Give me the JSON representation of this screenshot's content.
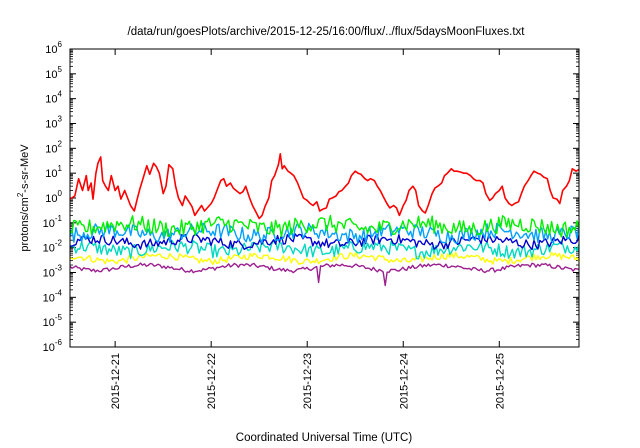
{
  "chart_data": {
    "type": "line",
    "title": "/data/run/goesPlots/archive/2015-12-25/16:00/flux/../flux/5daysMoonFluxes.txt",
    "xlabel": "Coordinated Universal Time (UTC)",
    "ylabel": {
      "prefix": "protons/cm",
      "sup": "2",
      "suffix": "-s-sr-MeV"
    },
    "yscale": "log",
    "ylim_exponents": [
      -6,
      6
    ],
    "ytick_base": "10",
    "ytick_exponents": [
      "6",
      "5",
      "4",
      "3",
      "2",
      "1",
      "0",
      "-1",
      "-2",
      "-3",
      "-4",
      "-5",
      "-6"
    ],
    "x_tick_labels": [
      "2015-12-21",
      "2015-12-22",
      "2015-12-23",
      "2015-12-24",
      "2015-12-25"
    ],
    "x_range_days": [
      0.53,
      5.83
    ],
    "series": [
      {
        "color": "#ff0000",
        "points": [
          [
            0.53,
            0.9
          ],
          [
            0.58,
            1.2
          ],
          [
            0.62,
            6
          ],
          [
            0.66,
            2
          ],
          [
            0.7,
            8
          ],
          [
            0.72,
            2
          ],
          [
            0.75,
            4
          ],
          [
            0.77,
            0.9
          ],
          [
            0.8,
            10
          ],
          [
            0.82,
            25
          ],
          [
            0.85,
            45
          ],
          [
            0.87,
            5
          ],
          [
            0.9,
            3
          ],
          [
            0.93,
            2
          ],
          [
            0.96,
            8
          ],
          [
            1.0,
            2
          ],
          [
            1.03,
            3
          ],
          [
            1.06,
            0.9
          ],
          [
            1.1,
            2
          ],
          [
            1.13,
            1
          ],
          [
            1.16,
            0.5
          ],
          [
            1.2,
            0.3
          ],
          [
            1.23,
            0.9
          ],
          [
            1.26,
            2.5
          ],
          [
            1.3,
            8
          ],
          [
            1.33,
            20
          ],
          [
            1.36,
            9
          ],
          [
            1.4,
            25
          ],
          [
            1.43,
            18
          ],
          [
            1.46,
            10
          ],
          [
            1.5,
            1.5
          ],
          [
            1.53,
            3
          ],
          [
            1.56,
            22
          ],
          [
            1.6,
            15
          ],
          [
            1.63,
            3
          ],
          [
            1.66,
            1
          ],
          [
            1.7,
            0.5
          ],
          [
            1.73,
            1.2
          ],
          [
            1.76,
            0.8
          ],
          [
            1.8,
            0.45
          ],
          [
            1.83,
            0.2
          ],
          [
            1.86,
            0.3
          ],
          [
            1.9,
            0.5
          ],
          [
            1.93,
            0.3
          ],
          [
            1.96,
            0.4
          ],
          [
            2.0,
            0.6
          ],
          [
            2.03,
            1
          ],
          [
            2.06,
            2
          ],
          [
            2.1,
            5
          ],
          [
            2.13,
            6
          ],
          [
            2.16,
            3
          ],
          [
            2.2,
            4
          ],
          [
            2.23,
            2.5
          ],
          [
            2.26,
            2
          ],
          [
            2.3,
            1.5
          ],
          [
            2.33,
            1.8
          ],
          [
            2.36,
            3
          ],
          [
            2.4,
            1
          ],
          [
            2.43,
            0.5
          ],
          [
            2.46,
            0.3
          ],
          [
            2.5,
            0.15
          ],
          [
            2.53,
            0.2
          ],
          [
            2.56,
            0.45
          ],
          [
            2.6,
            1
          ],
          [
            2.63,
            5
          ],
          [
            2.66,
            8
          ],
          [
            2.7,
            22
          ],
          [
            2.72,
            60
          ],
          [
            2.74,
            15
          ],
          [
            2.76,
            20
          ],
          [
            2.8,
            12
          ],
          [
            2.83,
            10
          ],
          [
            2.86,
            8
          ],
          [
            2.9,
            4
          ],
          [
            2.93,
            2
          ],
          [
            2.96,
            1
          ],
          [
            3.0,
            0.8
          ],
          [
            3.03,
            0.6
          ],
          [
            3.06,
            0.5
          ],
          [
            3.1,
            0.7
          ],
          [
            3.13,
            0.3
          ],
          [
            3.16,
            0.35
          ],
          [
            3.2,
            0.4
          ],
          [
            3.23,
            0.9
          ],
          [
            3.26,
            1
          ],
          [
            3.3,
            1.2
          ],
          [
            3.33,
            1.8
          ],
          [
            3.36,
            2
          ],
          [
            3.4,
            3
          ],
          [
            3.43,
            4
          ],
          [
            3.46,
            8
          ],
          [
            3.5,
            12
          ],
          [
            3.53,
            10
          ],
          [
            3.56,
            9
          ],
          [
            3.6,
            6
          ],
          [
            3.63,
            5
          ],
          [
            3.66,
            6
          ],
          [
            3.7,
            5
          ],
          [
            3.73,
            3
          ],
          [
            3.76,
            2
          ],
          [
            3.8,
            1
          ],
          [
            3.83,
            0.6
          ],
          [
            3.86,
            0.4
          ],
          [
            3.9,
            0.5
          ],
          [
            3.93,
            0.4
          ],
          [
            3.96,
            0.2
          ],
          [
            4.0,
            0.5
          ],
          [
            4.03,
            0.8
          ],
          [
            4.06,
            2
          ],
          [
            4.1,
            3
          ],
          [
            4.13,
            2
          ],
          [
            4.16,
            0.5
          ],
          [
            4.2,
            0.3
          ],
          [
            4.23,
            0.25
          ],
          [
            4.26,
            0.5
          ],
          [
            4.3,
            1.5
          ],
          [
            4.33,
            2.5
          ],
          [
            4.36,
            3
          ],
          [
            4.4,
            4
          ],
          [
            4.43,
            8
          ],
          [
            4.46,
            10
          ],
          [
            4.5,
            15
          ],
          [
            4.53,
            12
          ],
          [
            4.56,
            12
          ],
          [
            4.6,
            11
          ],
          [
            4.63,
            10
          ],
          [
            4.66,
            10
          ],
          [
            4.7,
            8
          ],
          [
            4.73,
            6
          ],
          [
            4.76,
            5
          ],
          [
            4.8,
            5
          ],
          [
            4.83,
            4
          ],
          [
            4.86,
            1.5
          ],
          [
            4.9,
            0.8
          ],
          [
            4.93,
            1
          ],
          [
            4.96,
            1.5
          ],
          [
            5.0,
            2
          ],
          [
            5.03,
            3
          ],
          [
            5.06,
            1
          ],
          [
            5.1,
            0.6
          ],
          [
            5.13,
            0.5
          ],
          [
            5.16,
            0.6
          ],
          [
            5.2,
            0.7
          ],
          [
            5.23,
            1.5
          ],
          [
            5.26,
            3
          ],
          [
            5.3,
            5
          ],
          [
            5.33,
            8
          ],
          [
            5.36,
            12
          ],
          [
            5.4,
            10
          ],
          [
            5.43,
            9
          ],
          [
            5.46,
            7
          ],
          [
            5.5,
            6
          ],
          [
            5.53,
            2
          ],
          [
            5.56,
            1
          ],
          [
            5.6,
            0.9
          ],
          [
            5.63,
            0.6
          ],
          [
            5.66,
            2
          ],
          [
            5.7,
            3
          ],
          [
            5.73,
            5
          ],
          [
            5.76,
            15
          ],
          [
            5.8,
            12
          ],
          [
            5.83,
            14
          ]
        ]
      },
      {
        "color": "#00ee00",
        "base": 0.075,
        "amp": 1.0,
        "dips": []
      },
      {
        "color": "#00a0ff",
        "base": 0.04,
        "amp": 0.9,
        "dips": []
      },
      {
        "color": "#0000cc",
        "base": 0.018,
        "amp": 0.6,
        "dips": []
      },
      {
        "color": "#00d8c0",
        "base": 0.009,
        "amp": 0.8,
        "dips": []
      },
      {
        "color": "#ffff00",
        "base": 0.0038,
        "amp": 0.4,
        "dips": []
      },
      {
        "color": "#9b1f8f",
        "base": 0.0016,
        "amp": 0.25,
        "dips": [
          [
            3.12,
            0.0004
          ],
          [
            3.82,
            0.0003
          ]
        ]
      }
    ]
  }
}
